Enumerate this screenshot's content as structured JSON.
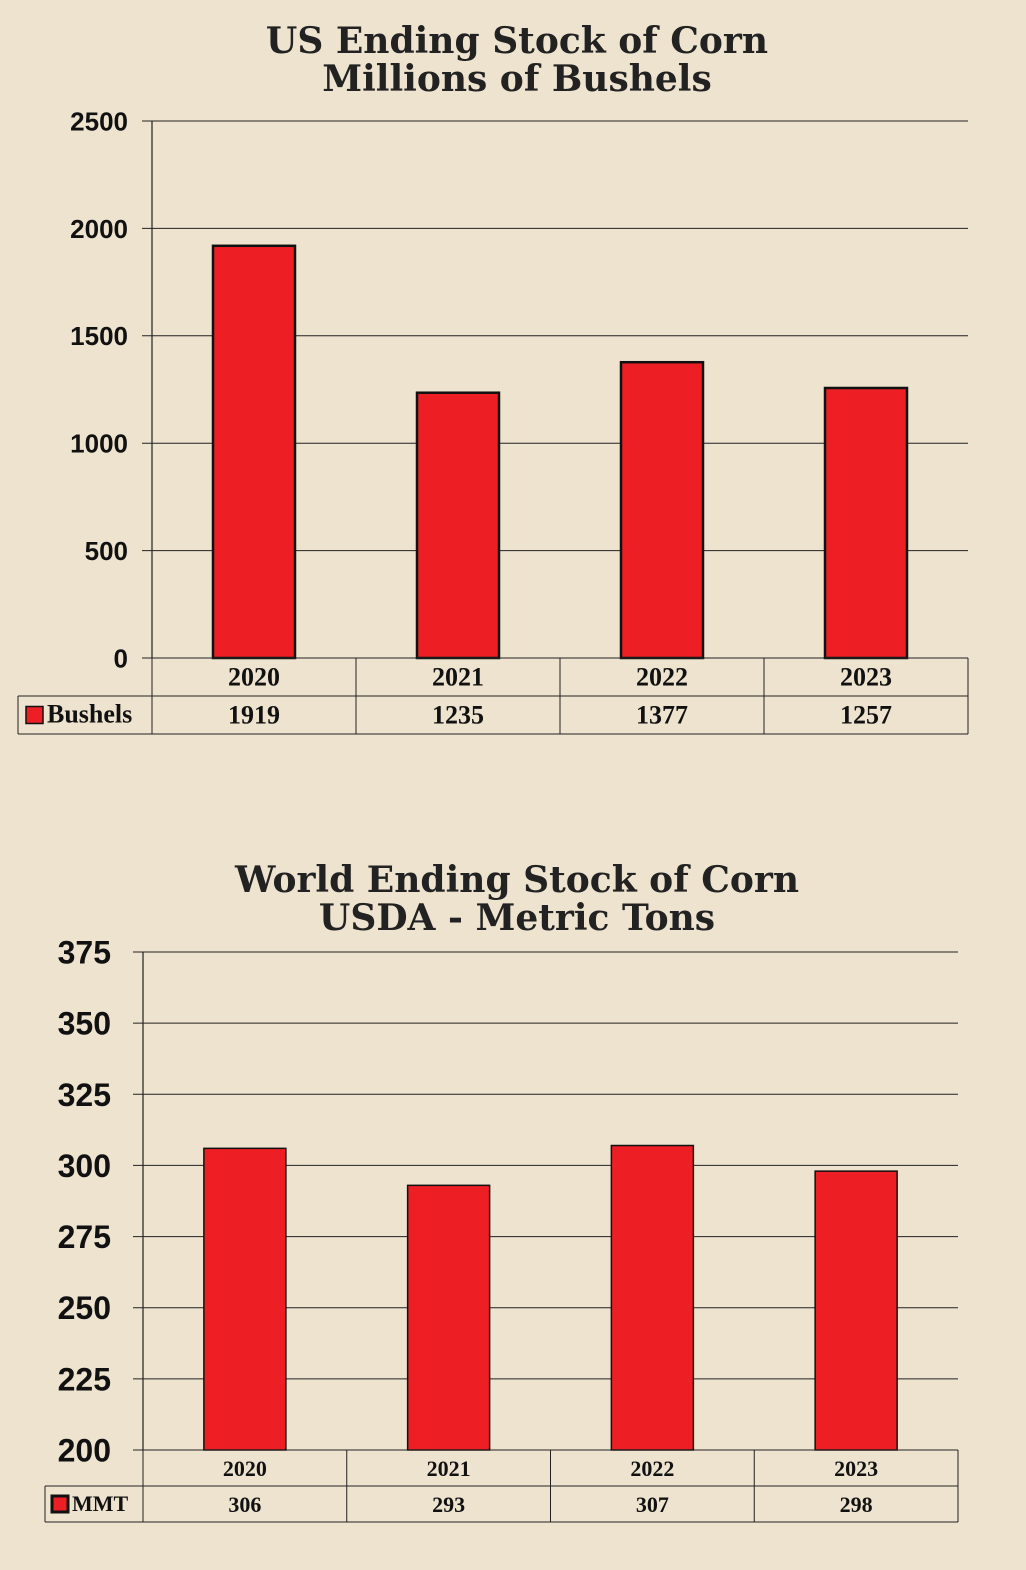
{
  "chart_data": [
    {
      "type": "bar",
      "title": "US Ending Stock of Corn",
      "subtitle": "Millions of Bushels",
      "categories": [
        "2020",
        "2021",
        "2022",
        "2023"
      ],
      "series": [
        {
          "name": "Bushels",
          "values": [
            1919,
            1235,
            1377,
            1257
          ],
          "color": "#ed1f24"
        }
      ],
      "yticks": [
        "2500",
        "2000",
        "1500",
        "1000",
        "500",
        "0"
      ],
      "ylim": [
        0,
        2500
      ],
      "grid": true,
      "legend": "data-table"
    },
    {
      "type": "bar",
      "title": "World Ending Stock of Corn",
      "subtitle": "USDA - Metric Tons",
      "categories": [
        "2020",
        "2021",
        "2022",
        "2023"
      ],
      "series": [
        {
          "name": "MMT",
          "values": [
            306,
            293,
            307,
            298
          ],
          "color": "#ed1f24"
        }
      ],
      "yticks": [
        "375",
        "350",
        "325",
        "300",
        "275",
        "250",
        "225",
        "200"
      ],
      "ylim": [
        200,
        375
      ],
      "grid": true,
      "legend": "data-table"
    }
  ]
}
